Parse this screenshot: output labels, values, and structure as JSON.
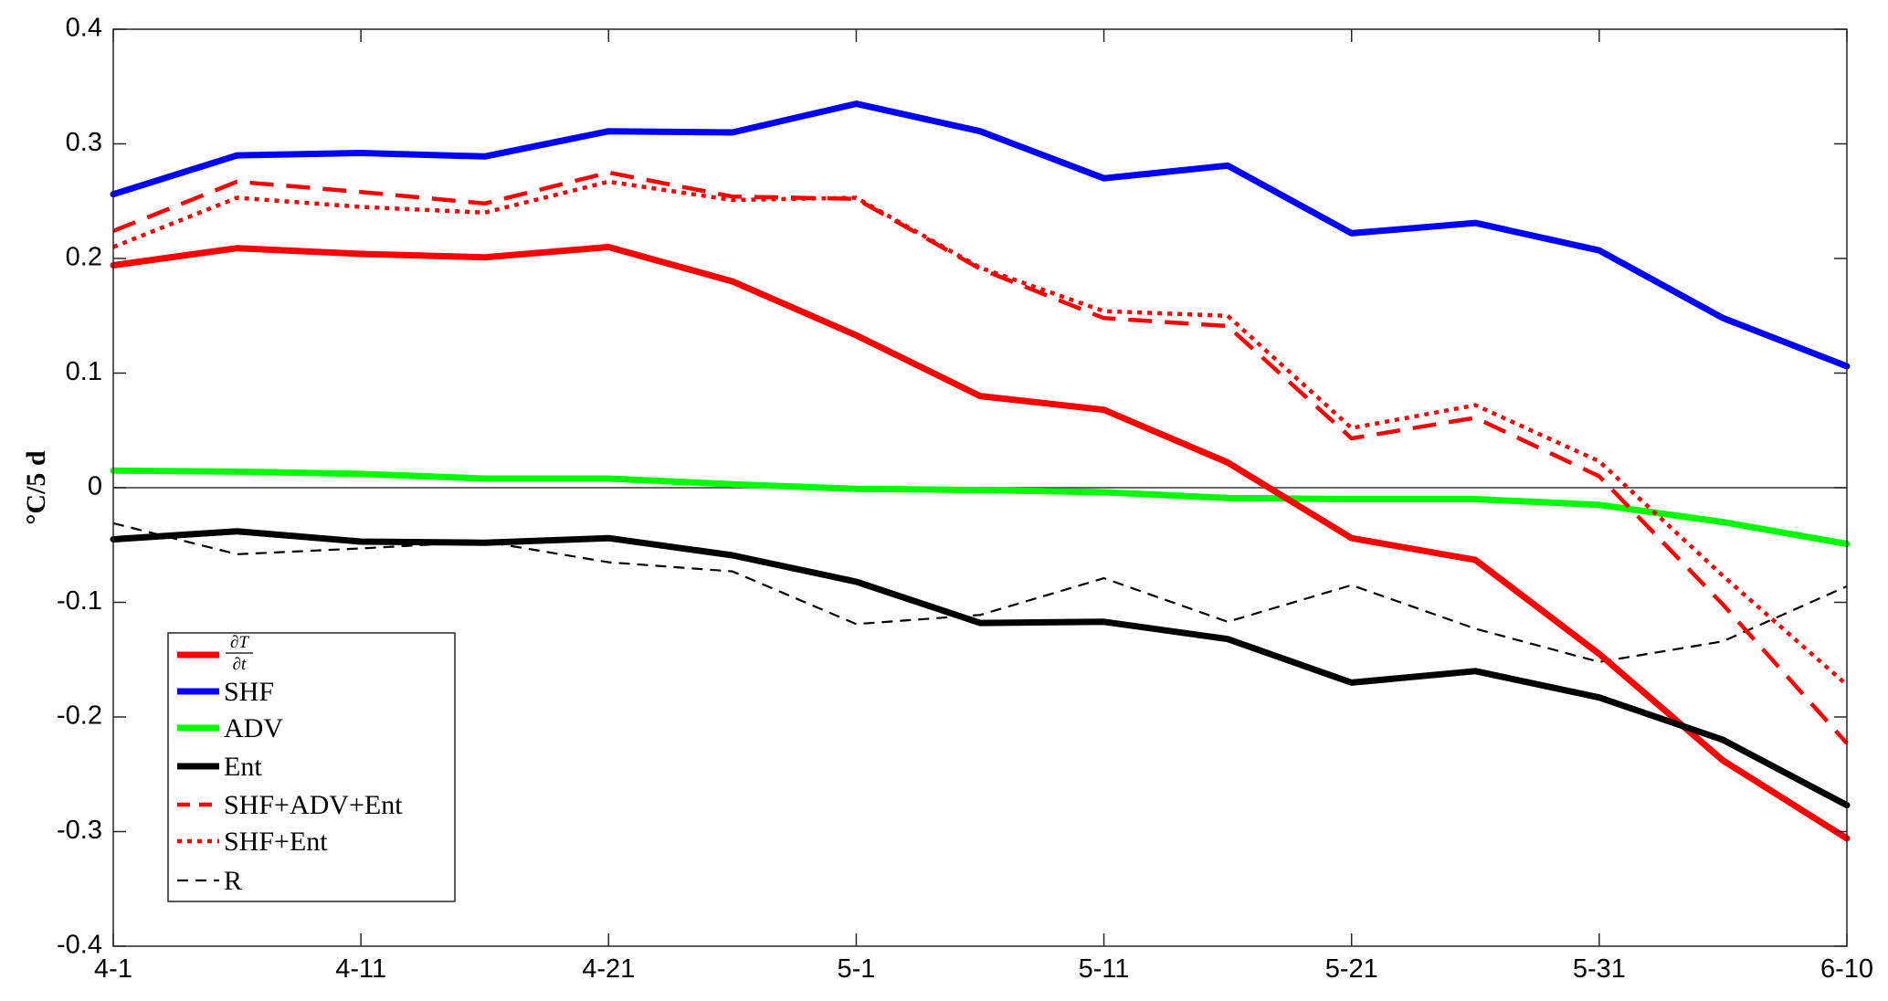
{
  "chart_data": {
    "type": "line",
    "xlabel": "",
    "ylabel": "°C/5 d",
    "ylim": [
      -0.4,
      0.4
    ],
    "yticks": [
      "-0.4",
      "-0.3",
      "-0.2",
      "-0.1",
      "0",
      "0.1",
      "0.2",
      "0.3",
      "0.4"
    ],
    "xticks": [
      "4-1",
      "4-11",
      "4-21",
      "5-1",
      "5-11",
      "5-21",
      "5-31",
      "6-10"
    ],
    "x_days": [
      1,
      6,
      11,
      16,
      21,
      26,
      31,
      36,
      41,
      46,
      51,
      56,
      61,
      66,
      71
    ],
    "grid": false,
    "zero_line": true,
    "legend_position": "lower-left",
    "series": [
      {
        "name": "∂T/∂t",
        "name_numerator": "∂T",
        "name_denominator": "∂t",
        "color": "#ff0000",
        "style": "solid",
        "width": "thick",
        "values": [
          0.194,
          0.209,
          0.204,
          0.201,
          0.21,
          0.18,
          0.133,
          0.08,
          0.068,
          0.022,
          -0.044,
          -0.063,
          -0.145,
          -0.238,
          -0.306
        ]
      },
      {
        "name": "SHF",
        "color": "#0000ff",
        "style": "solid",
        "width": "thick",
        "values": [
          0.256,
          0.29,
          0.292,
          0.289,
          0.311,
          0.31,
          0.335,
          0.311,
          0.27,
          0.281,
          0.222,
          0.231,
          0.207,
          0.148,
          0.106
        ]
      },
      {
        "name": "ADV",
        "color": "#00ff00",
        "style": "solid",
        "width": "thick",
        "values": [
          0.015,
          0.014,
          0.012,
          0.008,
          0.008,
          0.003,
          -0.001,
          -0.002,
          -0.004,
          -0.009,
          -0.01,
          -0.01,
          -0.015,
          -0.03,
          -0.049
        ]
      },
      {
        "name": "Ent",
        "color": "#000000",
        "style": "solid",
        "width": "thick",
        "values": [
          -0.045,
          -0.038,
          -0.047,
          -0.048,
          -0.044,
          -0.059,
          -0.082,
          -0.118,
          -0.117,
          -0.132,
          -0.17,
          -0.16,
          -0.183,
          -0.22,
          -0.277
        ]
      },
      {
        "name": "SHF+ADV+Ent",
        "color": "#ff0000",
        "style": "dashed",
        "width": "medium",
        "values": [
          0.224,
          0.267,
          0.258,
          0.248,
          0.275,
          0.254,
          0.252,
          0.191,
          0.148,
          0.141,
          0.043,
          0.061,
          0.01,
          -0.102,
          -0.223
        ]
      },
      {
        "name": "SHF+Ent",
        "color": "#ff0000",
        "style": "dotted",
        "width": "medium",
        "values": [
          0.21,
          0.253,
          0.245,
          0.24,
          0.267,
          0.251,
          0.253,
          0.192,
          0.154,
          0.15,
          0.052,
          0.072,
          0.023,
          -0.077,
          -0.172
        ]
      },
      {
        "name": "R",
        "color": "#000000",
        "style": "dashed",
        "width": "thin",
        "values": [
          -0.031,
          -0.058,
          -0.053,
          -0.047,
          -0.065,
          -0.073,
          -0.119,
          -0.111,
          -0.079,
          -0.117,
          -0.085,
          -0.123,
          -0.152,
          -0.134,
          -0.086
        ]
      }
    ]
  }
}
